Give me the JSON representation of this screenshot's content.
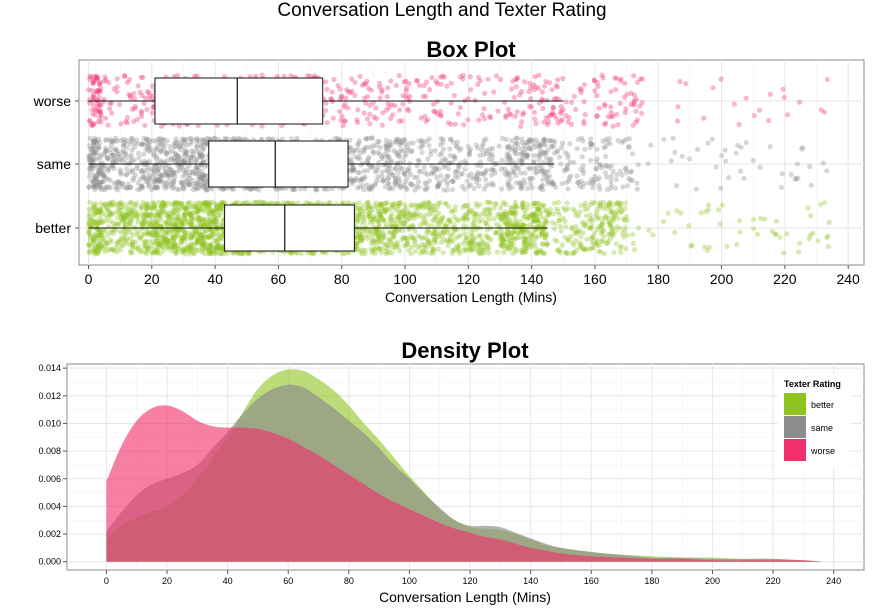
{
  "main_title": "Conversation Length and Texter Rating",
  "colors": {
    "better": "#8FC31F",
    "same": "#8C8C8C",
    "worse": "#F0306A"
  },
  "chart_data": [
    {
      "type": "box",
      "title": "Box Plot",
      "xlabel": "Conversation Length (Mins)",
      "xlim": [
        -3,
        245
      ],
      "x_ticks": [
        0,
        20,
        40,
        60,
        80,
        100,
        120,
        140,
        160,
        180,
        200,
        220,
        240
      ],
      "grid": true,
      "categories": [
        "worse",
        "same",
        "better"
      ],
      "boxes": [
        {
          "name": "worse",
          "whisker_low": 0,
          "q1": 21,
          "median": 47,
          "q3": 74,
          "whisker_high": 150,
          "max": 235
        },
        {
          "name": "same",
          "whisker_low": 0,
          "q1": 38,
          "median": 59,
          "q3": 82,
          "whisker_high": 147,
          "max": 235
        },
        {
          "name": "better",
          "whisker_low": 0,
          "q1": 43,
          "median": 62,
          "q3": 84,
          "whisker_high": 145,
          "max": 235
        }
      ]
    },
    {
      "type": "area",
      "title": "Density Plot",
      "xlabel": "Conversation Length (Mins)",
      "ylabel": "",
      "xlim": [
        -13,
        250
      ],
      "ylim": [
        -0.0006,
        0.0143
      ],
      "x_ticks": [
        0,
        20,
        40,
        60,
        80,
        100,
        120,
        140,
        160,
        180,
        200,
        220,
        240
      ],
      "y_ticks": [
        "0.000",
        "0.002",
        "0.004",
        "0.006",
        "0.008",
        "0.010",
        "0.012",
        "0.014"
      ],
      "grid": true,
      "legend": {
        "title": "Texter Rating",
        "position": "top-right",
        "entries": [
          "better",
          "same",
          "worse"
        ]
      },
      "x": [
        0,
        5,
        10,
        15,
        20,
        25,
        30,
        35,
        40,
        45,
        50,
        55,
        60,
        65,
        70,
        75,
        80,
        85,
        90,
        95,
        100,
        105,
        110,
        115,
        120,
        125,
        130,
        135,
        140,
        145,
        150,
        160,
        170,
        180,
        190,
        200,
        210,
        220,
        230,
        236
      ],
      "series": [
        {
          "name": "better",
          "values": [
            0.0016,
            0.0026,
            0.0032,
            0.0036,
            0.004,
            0.0048,
            0.006,
            0.0075,
            0.009,
            0.0108,
            0.0125,
            0.0135,
            0.0139,
            0.0138,
            0.0132,
            0.0124,
            0.0113,
            0.01,
            0.0088,
            0.0075,
            0.0062,
            0.005,
            0.0038,
            0.003,
            0.0025,
            0.0024,
            0.0023,
            0.002,
            0.0016,
            0.0012,
            0.001,
            0.0007,
            0.0005,
            0.0004,
            0.0003,
            0.0003,
            0.0002,
            0.0002,
            0.0001,
            0.0
          ]
        },
        {
          "name": "same",
          "values": [
            0.0022,
            0.0036,
            0.0048,
            0.0056,
            0.006,
            0.0064,
            0.007,
            0.0082,
            0.0094,
            0.0107,
            0.0118,
            0.0125,
            0.0128,
            0.0126,
            0.0119,
            0.0111,
            0.0102,
            0.0093,
            0.0082,
            0.007,
            0.006,
            0.0049,
            0.0039,
            0.003,
            0.0026,
            0.0026,
            0.0025,
            0.0021,
            0.0017,
            0.0013,
            0.001,
            0.0007,
            0.0005,
            0.0003,
            0.0003,
            0.0002,
            0.0002,
            0.0002,
            0.0001,
            0.0
          ]
        },
        {
          "name": "worse",
          "values": [
            0.0058,
            0.0084,
            0.0102,
            0.0111,
            0.0113,
            0.0109,
            0.0102,
            0.0098,
            0.0097,
            0.0097,
            0.0096,
            0.0093,
            0.0089,
            0.0083,
            0.0077,
            0.007,
            0.0063,
            0.0056,
            0.0049,
            0.0043,
            0.0038,
            0.0033,
            0.0028,
            0.0024,
            0.0021,
            0.0018,
            0.0016,
            0.0013,
            0.001,
            0.0008,
            0.0006,
            0.0004,
            0.0003,
            0.0002,
            0.0002,
            0.0001,
            0.0001,
            0.0001,
            0.0001,
            0.0
          ]
        }
      ]
    }
  ]
}
